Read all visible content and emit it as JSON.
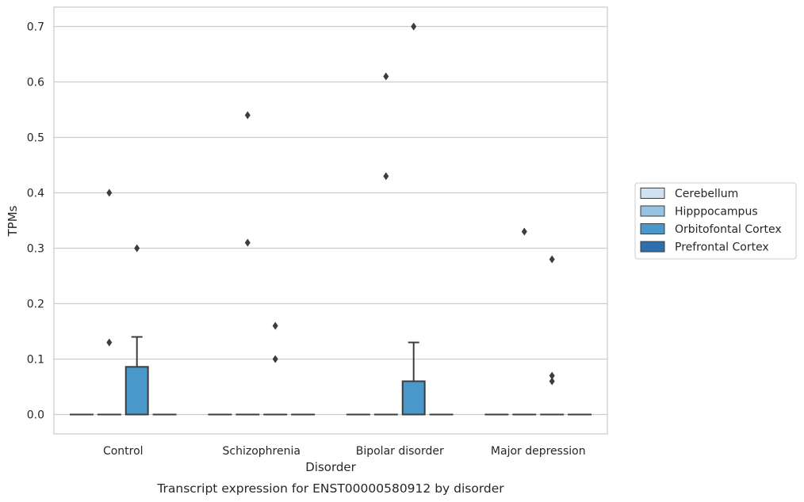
{
  "caption": "Transcript expression for ENST00000580912 by disorder",
  "chart_data": {
    "type": "box",
    "xlabel": "Disorder",
    "ylabel": "TPMs",
    "ylim": [
      -0.035,
      0.735
    ],
    "yticks": [
      "0.0",
      "0.1",
      "0.2",
      "0.3",
      "0.4",
      "0.5",
      "0.6",
      "0.7"
    ],
    "ytick_values": [
      0,
      0.1,
      0.2,
      0.3,
      0.4,
      0.5,
      0.6,
      0.7
    ],
    "categories": [
      "Control",
      "Schizophrenia",
      "Bipolar disorder",
      "Major depression"
    ],
    "grid": "horizontal",
    "legend_position": "right",
    "series": [
      {
        "name": "Cerebellum",
        "color": "#d0e1f2",
        "boxes": [
          {
            "q1": 0,
            "median": 0,
            "q3": 0,
            "whisker_low": 0,
            "whisker_high": 0,
            "outliers": []
          },
          {
            "q1": 0,
            "median": 0,
            "q3": 0,
            "whisker_low": 0,
            "whisker_high": 0,
            "outliers": []
          },
          {
            "q1": 0,
            "median": 0,
            "q3": 0,
            "whisker_low": 0,
            "whisker_high": 0,
            "outliers": []
          },
          {
            "q1": 0,
            "median": 0,
            "q3": 0,
            "whisker_low": 0,
            "whisker_high": 0,
            "outliers": []
          }
        ]
      },
      {
        "name": "Hipppocampus",
        "color": "#94c4df",
        "boxes": [
          {
            "q1": 0,
            "median": 0,
            "q3": 0,
            "whisker_low": 0,
            "whisker_high": 0,
            "outliers": [
              0.4,
              0.13
            ]
          },
          {
            "q1": 0,
            "median": 0,
            "q3": 0,
            "whisker_low": 0,
            "whisker_high": 0,
            "outliers": [
              0.54,
              0.31
            ]
          },
          {
            "q1": 0,
            "median": 0,
            "q3": 0,
            "whisker_low": 0,
            "whisker_high": 0,
            "outliers": [
              0.61,
              0.43
            ]
          },
          {
            "q1": 0,
            "median": 0,
            "q3": 0,
            "whisker_low": 0,
            "whisker_high": 0,
            "outliers": [
              0.33
            ]
          }
        ]
      },
      {
        "name": "Orbitofontal Cortex",
        "color": "#4a98c9",
        "boxes": [
          {
            "q1": 0,
            "median": 0,
            "q3": 0.086,
            "whisker_low": 0,
            "whisker_high": 0.14,
            "outliers": [
              0.3
            ]
          },
          {
            "q1": 0,
            "median": 0,
            "q3": 0,
            "whisker_low": 0,
            "whisker_high": 0,
            "outliers": [
              0.16,
              0.1
            ]
          },
          {
            "q1": 0,
            "median": 0,
            "q3": 0.06,
            "whisker_low": 0,
            "whisker_high": 0.13,
            "outliers": [
              0.7
            ]
          },
          {
            "q1": 0,
            "median": 0,
            "q3": 0,
            "whisker_low": 0,
            "whisker_high": 0,
            "outliers": [
              0.28,
              0.07,
              0.06
            ]
          }
        ]
      },
      {
        "name": "Prefrontal Cortex",
        "color": "#2e6fac",
        "boxes": [
          {
            "q1": 0,
            "median": 0,
            "q3": 0,
            "whisker_low": 0,
            "whisker_high": 0,
            "outliers": []
          },
          {
            "q1": 0,
            "median": 0,
            "q3": 0,
            "whisker_low": 0,
            "whisker_high": 0,
            "outliers": []
          },
          {
            "q1": 0,
            "median": 0,
            "q3": 0,
            "whisker_low": 0,
            "whisker_high": 0,
            "outliers": []
          },
          {
            "q1": 0,
            "median": 0,
            "q3": 0,
            "whisker_low": 0,
            "whisker_high": 0,
            "outliers": []
          }
        ]
      }
    ]
  },
  "colors": {
    "axes_edge": "#cccccc",
    "grid": "#cccccc",
    "box_edge": "#3d3d3d",
    "text": "#262626"
  }
}
